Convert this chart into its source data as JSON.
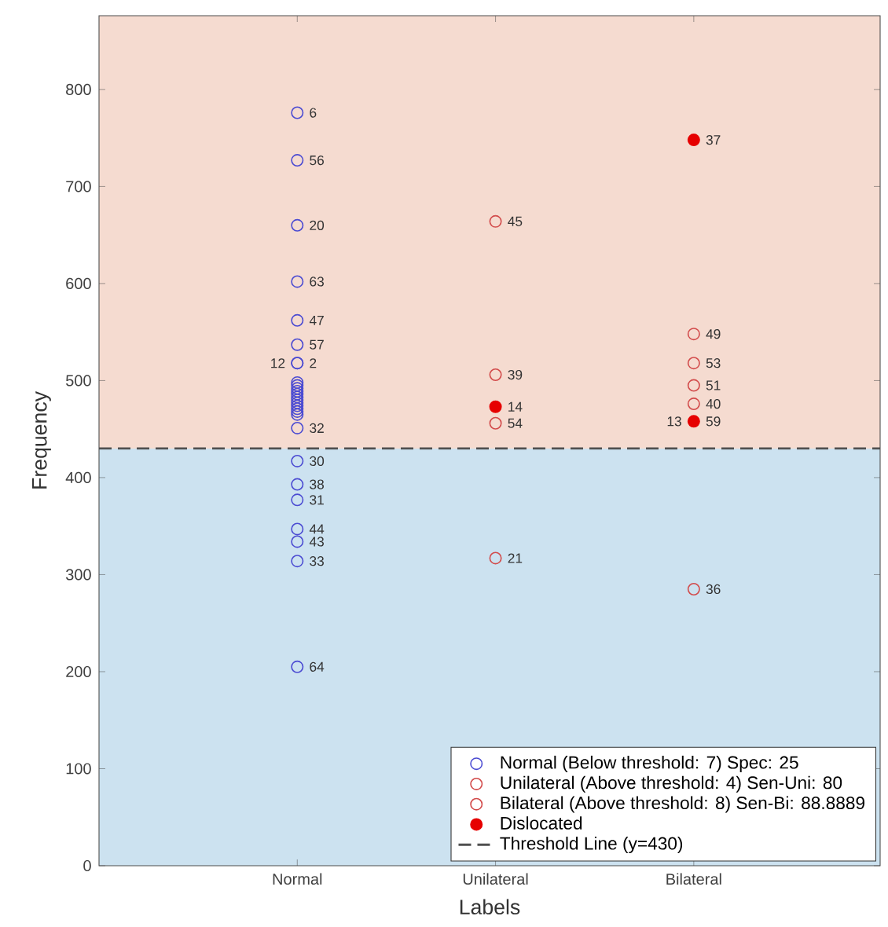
{
  "chart_data": {
    "type": "scatter",
    "xlabel": "Labels",
    "ylabel": "Frequency",
    "categories": [
      "Normal",
      "Unilateral",
      "Bilateral"
    ],
    "ylim": [
      0,
      876
    ],
    "yticks": [
      0,
      100,
      200,
      300,
      400,
      500,
      600,
      700,
      800
    ],
    "legend": "bottom right",
    "series": [
      {
        "name": "Normal (Below threshold: 7) Spec: 25",
        "color": "#4b4bd2",
        "marker": "circle",
        "x": [
          "Normal",
          "Normal",
          "Normal",
          "Normal",
          "Normal",
          "Normal",
          "Normal",
          "Normal",
          "Normal",
          "Normal",
          "Normal",
          "Normal",
          "Normal",
          "Normal",
          "Normal",
          "Normal",
          "Normal",
          "Normal",
          "Normal",
          "Normal",
          "Normal",
          "Normal",
          "Normal",
          "Normal",
          "Normal",
          "Normal",
          "Normal",
          "Normal"
        ],
        "values": [
          776,
          727,
          660,
          602,
          562,
          537,
          518,
          518,
          498,
          495,
          492,
          489,
          486,
          483,
          480,
          477,
          474,
          471,
          468,
          465,
          451,
          417,
          393,
          377,
          347,
          334,
          314,
          205
        ]
      },
      {
        "name": "Unilateral (Above threshold: 4) Sen-Uni: 80",
        "color": "#d24b4b",
        "marker": "circle",
        "x": [
          "Unilateral",
          "Unilateral",
          "Unilateral",
          "Unilateral"
        ],
        "values": [
          664,
          506,
          456,
          317
        ]
      },
      {
        "name": "Bilateral (Above threshold: 8) Sen-Bi: 88.8889",
        "color": "#d24b4b",
        "marker": "circle",
        "x": [
          "Bilateral",
          "Bilateral",
          "Bilateral",
          "Bilateral",
          "Bilateral",
          "Bilateral",
          "Bilateral"
        ],
        "values": [
          548,
          518,
          495,
          476,
          null,
          null,
          285
        ]
      },
      {
        "name": "Dislocated",
        "color": "#e60000",
        "marker": "filled circle",
        "x": [
          "Unilateral",
          "Bilateral",
          "Bilateral"
        ],
        "values": [
          473,
          748,
          458
        ]
      }
    ],
    "ref_lines": [
      {
        "axis": "y",
        "value": 430,
        "label": "Threshold Line (y=430)",
        "color": "#505050",
        "line_style": "dashed"
      }
    ],
    "bands": [
      {
        "axis": "y",
        "from": 0,
        "to": 430,
        "color": "#cce2f0"
      },
      {
        "axis": "y",
        "from": 430,
        "to": 876,
        "color": "#f5dbd0"
      }
    ],
    "annotations": [
      {
        "text": "6",
        "x": "Normal",
        "y": 776
      },
      {
        "text": "56",
        "x": "Normal",
        "y": 727
      },
      {
        "text": "20",
        "x": "Normal",
        "y": 660
      },
      {
        "text": "63",
        "x": "Normal",
        "y": 602
      },
      {
        "text": "47",
        "x": "Normal",
        "y": 562
      },
      {
        "text": "57",
        "x": "Normal",
        "y": 537
      },
      {
        "text": "2",
        "x": "Normal",
        "y": 518
      },
      {
        "text": "12",
        "x": "Normal",
        "y": 518
      },
      {
        "text": "32",
        "x": "Normal",
        "y": 451
      },
      {
        "text": "30",
        "x": "Normal",
        "y": 417
      },
      {
        "text": "38",
        "x": "Normal",
        "y": 393
      },
      {
        "text": "31",
        "x": "Normal",
        "y": 377
      },
      {
        "text": "44",
        "x": "Normal",
        "y": 347
      },
      {
        "text": "43",
        "x": "Normal",
        "y": 334
      },
      {
        "text": "33",
        "x": "Normal",
        "y": 314
      },
      {
        "text": "64",
        "x": "Normal",
        "y": 205
      },
      {
        "text": "45",
        "x": "Unilateral",
        "y": 664
      },
      {
        "text": "39",
        "x": "Unilateral",
        "y": 506
      },
      {
        "text": "14",
        "x": "Unilateral",
        "y": 473
      },
      {
        "text": "54",
        "x": "Unilateral",
        "y": 456
      },
      {
        "text": "21",
        "x": "Unilateral",
        "y": 317
      },
      {
        "text": "37",
        "x": "Bilateral",
        "y": 748
      },
      {
        "text": "49",
        "x": "Bilateral",
        "y": 548
      },
      {
        "text": "53",
        "x": "Bilateral",
        "y": 518
      },
      {
        "text": "51",
        "x": "Bilateral",
        "y": 495
      },
      {
        "text": "40",
        "x": "Bilateral",
        "y": 476
      },
      {
        "text": "59",
        "x": "Bilateral",
        "y": 458
      },
      {
        "text": "13",
        "x": "Bilateral",
        "y": 458
      },
      {
        "text": "36",
        "x": "Bilateral",
        "y": 285
      }
    ]
  }
}
